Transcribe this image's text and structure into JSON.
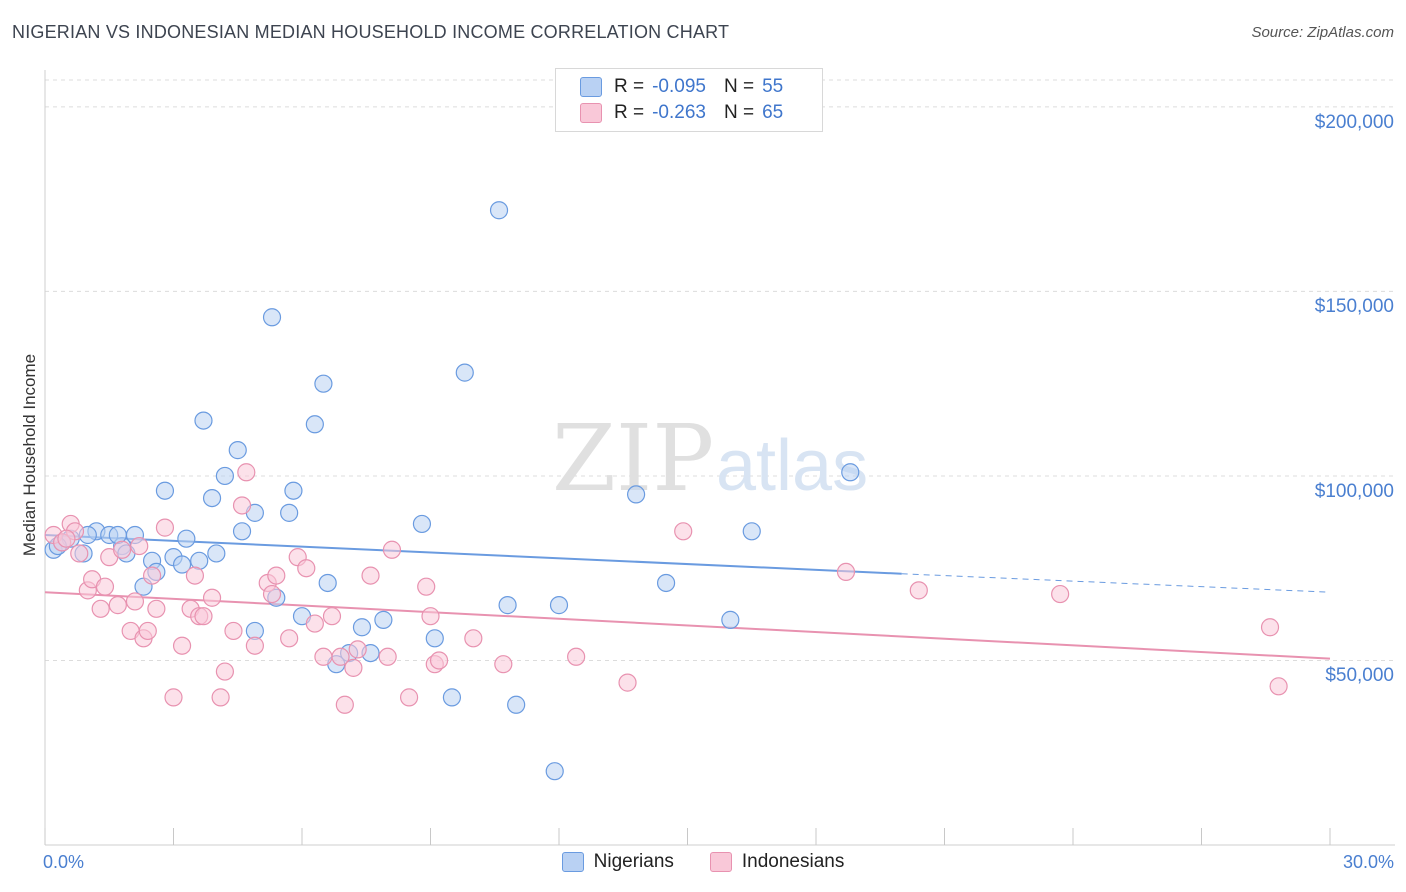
{
  "header": {
    "title": "NIGERIAN VS INDONESIAN MEDIAN HOUSEHOLD INCOME CORRELATION CHART",
    "source": "Source: ZipAtlas.com"
  },
  "legend": {
    "rows": [
      {
        "r_label": "R =",
        "r_value": "-0.095",
        "n_label": "N =",
        "n_value": "55",
        "color": "#6a9be0"
      },
      {
        "r_label": "R =",
        "r_value": "-0.263",
        "n_label": "N =",
        "n_value": "65",
        "color": "#e892b0"
      }
    ],
    "bottom": [
      "Nigerians",
      "Indonesians"
    ]
  },
  "watermark": {
    "zip": "ZIP",
    "atlas": "atlas"
  },
  "chart_data": {
    "type": "scatter",
    "title": "NIGERIAN VS INDONESIAN MEDIAN HOUSEHOLD INCOME CORRELATION CHART",
    "xlabel": "",
    "ylabel": "Median Household Income",
    "xlim": [
      0,
      30
    ],
    "ylim": [
      0,
      210000
    ],
    "x_tick_labels": [
      "0.0%",
      "30.0%"
    ],
    "y_ticks": [
      {
        "value": 50000,
        "label": "$50,000"
      },
      {
        "value": 100000,
        "label": "$100,000"
      },
      {
        "value": 150000,
        "label": "$150,000"
      },
      {
        "value": 200000,
        "label": "$200,000"
      }
    ],
    "grid": true,
    "legend_position": "top-center",
    "series": [
      {
        "name": "Nigerians",
        "color": "#6a9be0",
        "fill": "#b9d1f3",
        "trend": {
          "x": [
            0.0,
            20.0,
            30.0
          ],
          "y": [
            84000,
            73500,
            68500
          ],
          "dashed_from": 20.0
        },
        "points": [
          [
            0.2,
            80000
          ],
          [
            0.4,
            82000
          ],
          [
            0.6,
            83000
          ],
          [
            0.9,
            79000
          ],
          [
            1.2,
            85000
          ],
          [
            1.5,
            84000
          ],
          [
            1.8,
            81000
          ],
          [
            1.9,
            79000
          ],
          [
            2.1,
            84000
          ],
          [
            2.3,
            70000
          ],
          [
            2.5,
            77000
          ],
          [
            2.6,
            74000
          ],
          [
            2.8,
            96000
          ],
          [
            3.0,
            78000
          ],
          [
            3.2,
            76000
          ],
          [
            3.3,
            83000
          ],
          [
            3.6,
            77000
          ],
          [
            3.7,
            115000
          ],
          [
            3.9,
            94000
          ],
          [
            4.0,
            79000
          ],
          [
            4.2,
            100000
          ],
          [
            4.5,
            107000
          ],
          [
            4.6,
            85000
          ],
          [
            4.9,
            90000
          ],
          [
            5.3,
            143000
          ],
          [
            5.4,
            67000
          ],
          [
            5.7,
            90000
          ],
          [
            5.8,
            96000
          ],
          [
            6.0,
            62000
          ],
          [
            6.3,
            114000
          ],
          [
            6.5,
            125000
          ],
          [
            6.6,
            71000
          ],
          [
            6.8,
            49000
          ],
          [
            7.1,
            52000
          ],
          [
            7.4,
            59000
          ],
          [
            7.6,
            52000
          ],
          [
            7.9,
            61000
          ],
          [
            8.8,
            87000
          ],
          [
            9.1,
            56000
          ],
          [
            9.5,
            40000
          ],
          [
            9.8,
            128000
          ],
          [
            10.6,
            172000
          ],
          [
            10.8,
            65000
          ],
          [
            11.0,
            38000
          ],
          [
            11.9,
            20000
          ],
          [
            12.0,
            65000
          ],
          [
            13.8,
            95000
          ],
          [
            14.5,
            71000
          ],
          [
            16.0,
            61000
          ],
          [
            16.5,
            85000
          ],
          [
            18.8,
            101000
          ],
          [
            0.3,
            81000
          ],
          [
            1.0,
            84000
          ],
          [
            4.9,
            58000
          ],
          [
            1.7,
            84000
          ]
        ]
      },
      {
        "name": "Indonesians",
        "color": "#e892b0",
        "fill": "#f9c8d8",
        "trend": {
          "x": [
            0.0,
            30.0
          ],
          "y": [
            68500,
            50500
          ]
        },
        "points": [
          [
            0.2,
            84000
          ],
          [
            0.4,
            82000
          ],
          [
            0.6,
            87000
          ],
          [
            0.7,
            85000
          ],
          [
            0.8,
            79000
          ],
          [
            1.0,
            69000
          ],
          [
            1.1,
            72000
          ],
          [
            1.3,
            64000
          ],
          [
            1.4,
            70000
          ],
          [
            1.5,
            78000
          ],
          [
            1.7,
            65000
          ],
          [
            1.8,
            80000
          ],
          [
            2.0,
            58000
          ],
          [
            2.1,
            66000
          ],
          [
            2.3,
            56000
          ],
          [
            2.4,
            58000
          ],
          [
            2.5,
            73000
          ],
          [
            2.6,
            64000
          ],
          [
            2.8,
            86000
          ],
          [
            3.0,
            40000
          ],
          [
            3.2,
            54000
          ],
          [
            3.4,
            64000
          ],
          [
            3.5,
            73000
          ],
          [
            3.6,
            62000
          ],
          [
            3.7,
            62000
          ],
          [
            3.9,
            67000
          ],
          [
            4.1,
            40000
          ],
          [
            4.2,
            47000
          ],
          [
            4.4,
            58000
          ],
          [
            4.6,
            92000
          ],
          [
            4.7,
            101000
          ],
          [
            4.9,
            54000
          ],
          [
            5.2,
            71000
          ],
          [
            5.3,
            68000
          ],
          [
            5.4,
            73000
          ],
          [
            5.7,
            56000
          ],
          [
            5.9,
            78000
          ],
          [
            6.1,
            75000
          ],
          [
            6.3,
            60000
          ],
          [
            6.5,
            51000
          ],
          [
            6.7,
            62000
          ],
          [
            6.9,
            51000
          ],
          [
            7.0,
            38000
          ],
          [
            7.2,
            48000
          ],
          [
            7.3,
            53000
          ],
          [
            7.6,
            73000
          ],
          [
            8.0,
            51000
          ],
          [
            8.1,
            80000
          ],
          [
            8.5,
            40000
          ],
          [
            8.9,
            70000
          ],
          [
            9.0,
            62000
          ],
          [
            9.1,
            49000
          ],
          [
            9.2,
            50000
          ],
          [
            10.0,
            56000
          ],
          [
            10.7,
            49000
          ],
          [
            12.4,
            51000
          ],
          [
            13.6,
            44000
          ],
          [
            14.9,
            85000
          ],
          [
            18.7,
            74000
          ],
          [
            20.4,
            69000
          ],
          [
            23.7,
            68000
          ],
          [
            28.6,
            59000
          ],
          [
            28.8,
            43000
          ],
          [
            0.5,
            83000
          ],
          [
            2.2,
            81000
          ]
        ]
      }
    ]
  }
}
